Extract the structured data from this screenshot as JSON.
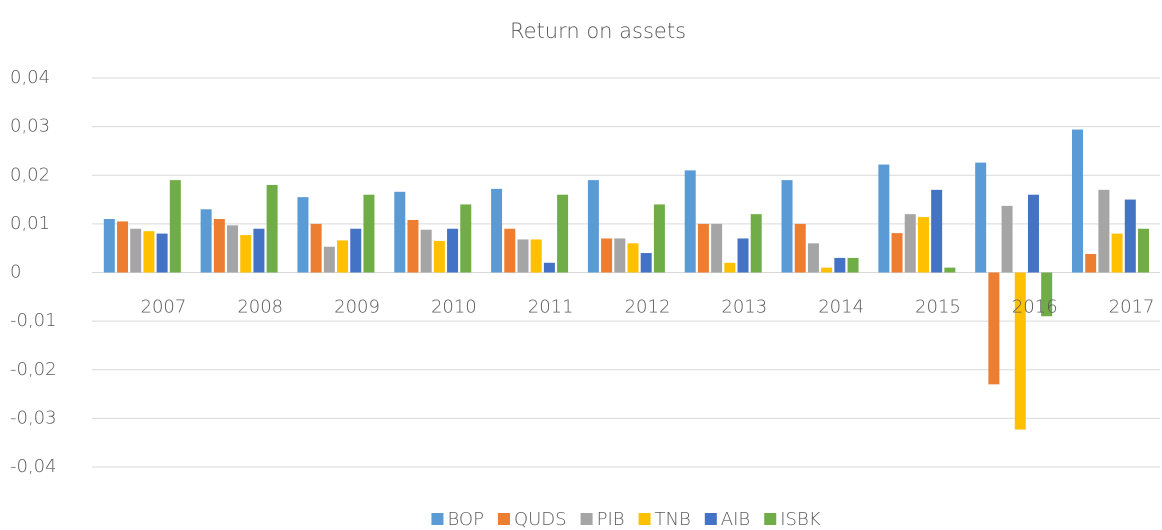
{
  "chart_data": {
    "type": "bar",
    "title": "Return on assets",
    "categories": [
      "2007",
      "2008",
      "2009",
      "2010",
      "2011",
      "2012",
      "2013",
      "2014",
      "2015",
      "2016",
      "2017"
    ],
    "series": [
      {
        "name": "BOP",
        "color": "#5b9bd5",
        "values": [
          0.011,
          0.013,
          0.0155,
          0.0166,
          0.0172,
          0.019,
          0.021,
          0.019,
          0.0222,
          0.0226,
          0.0294
        ]
      },
      {
        "name": "QUDS",
        "color": "#ed7d31",
        "values": [
          0.0105,
          0.011,
          0.01,
          0.0108,
          0.009,
          0.007,
          0.01,
          0.01,
          0.0081,
          -0.023,
          0.0038
        ]
      },
      {
        "name": "PIB",
        "color": "#a5a5a5",
        "values": [
          0.009,
          0.0097,
          0.0053,
          0.0088,
          0.0068,
          0.007,
          0.01,
          0.006,
          0.012,
          0.0137,
          0.017
        ]
      },
      {
        "name": "TNB",
        "color": "#ffc000",
        "values": [
          0.0085,
          0.0077,
          0.0066,
          0.0065,
          0.0068,
          0.006,
          0.002,
          0.001,
          0.0114,
          -0.0323,
          0.008
        ]
      },
      {
        "name": "AIB",
        "color": "#4472c4",
        "values": [
          0.008,
          0.009,
          0.009,
          0.009,
          0.002,
          0.004,
          0.007,
          0.003,
          0.017,
          0.016,
          0.015
        ]
      },
      {
        "name": "ISBK",
        "color": "#70ad47",
        "values": [
          0.019,
          0.018,
          0.016,
          0.014,
          0.016,
          0.014,
          0.012,
          0.003,
          0.001,
          -0.009,
          0.009
        ]
      }
    ],
    "ylim": [
      -0.04,
      0.04
    ],
    "yticks": [
      {
        "value": -0.04,
        "label": "-0,04"
      },
      {
        "value": -0.03,
        "label": "-0,03"
      },
      {
        "value": -0.02,
        "label": "-0,02"
      },
      {
        "value": -0.01,
        "label": "-0,01"
      },
      0,
      {
        "value": 0.01,
        "label": "0,01"
      },
      {
        "value": 0.02,
        "label": "0,02"
      },
      {
        "value": 0.03,
        "label": "0,03"
      },
      {
        "value": 0.04,
        "label": "0,04"
      }
    ],
    "grid": true,
    "legend": "bottom"
  }
}
